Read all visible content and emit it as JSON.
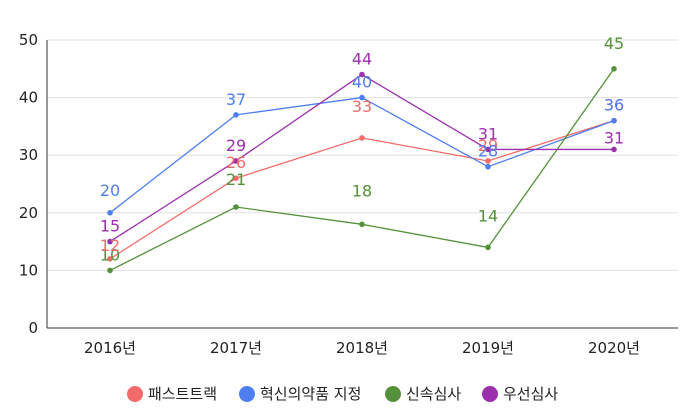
{
  "chart_data": {
    "type": "line",
    "title": "",
    "xlabel": "",
    "ylabel": "",
    "categories": [
      "2016년",
      "2017년",
      "2018년",
      "2019년",
      "2020년"
    ],
    "ylim": [
      0,
      50
    ],
    "yticks": [
      "0",
      "10",
      "20",
      "30",
      "40",
      "50"
    ],
    "grid": true,
    "legend_position": "bottom",
    "series": [
      {
        "name": "패스트트랙",
        "color": "#f26b6b",
        "values": [
          12,
          26,
          33,
          29,
          36
        ]
      },
      {
        "name": "혁신의약품 지정",
        "color": "#4f7ef0",
        "values": [
          20,
          37,
          40,
          28,
          36
        ]
      },
      {
        "name": "신속심사",
        "color": "#55913a",
        "values": [
          10,
          21,
          18,
          14,
          45
        ]
      },
      {
        "name": "우선심사",
        "color": "#9b30ae",
        "values": [
          15,
          29,
          44,
          31,
          31
        ]
      }
    ]
  }
}
